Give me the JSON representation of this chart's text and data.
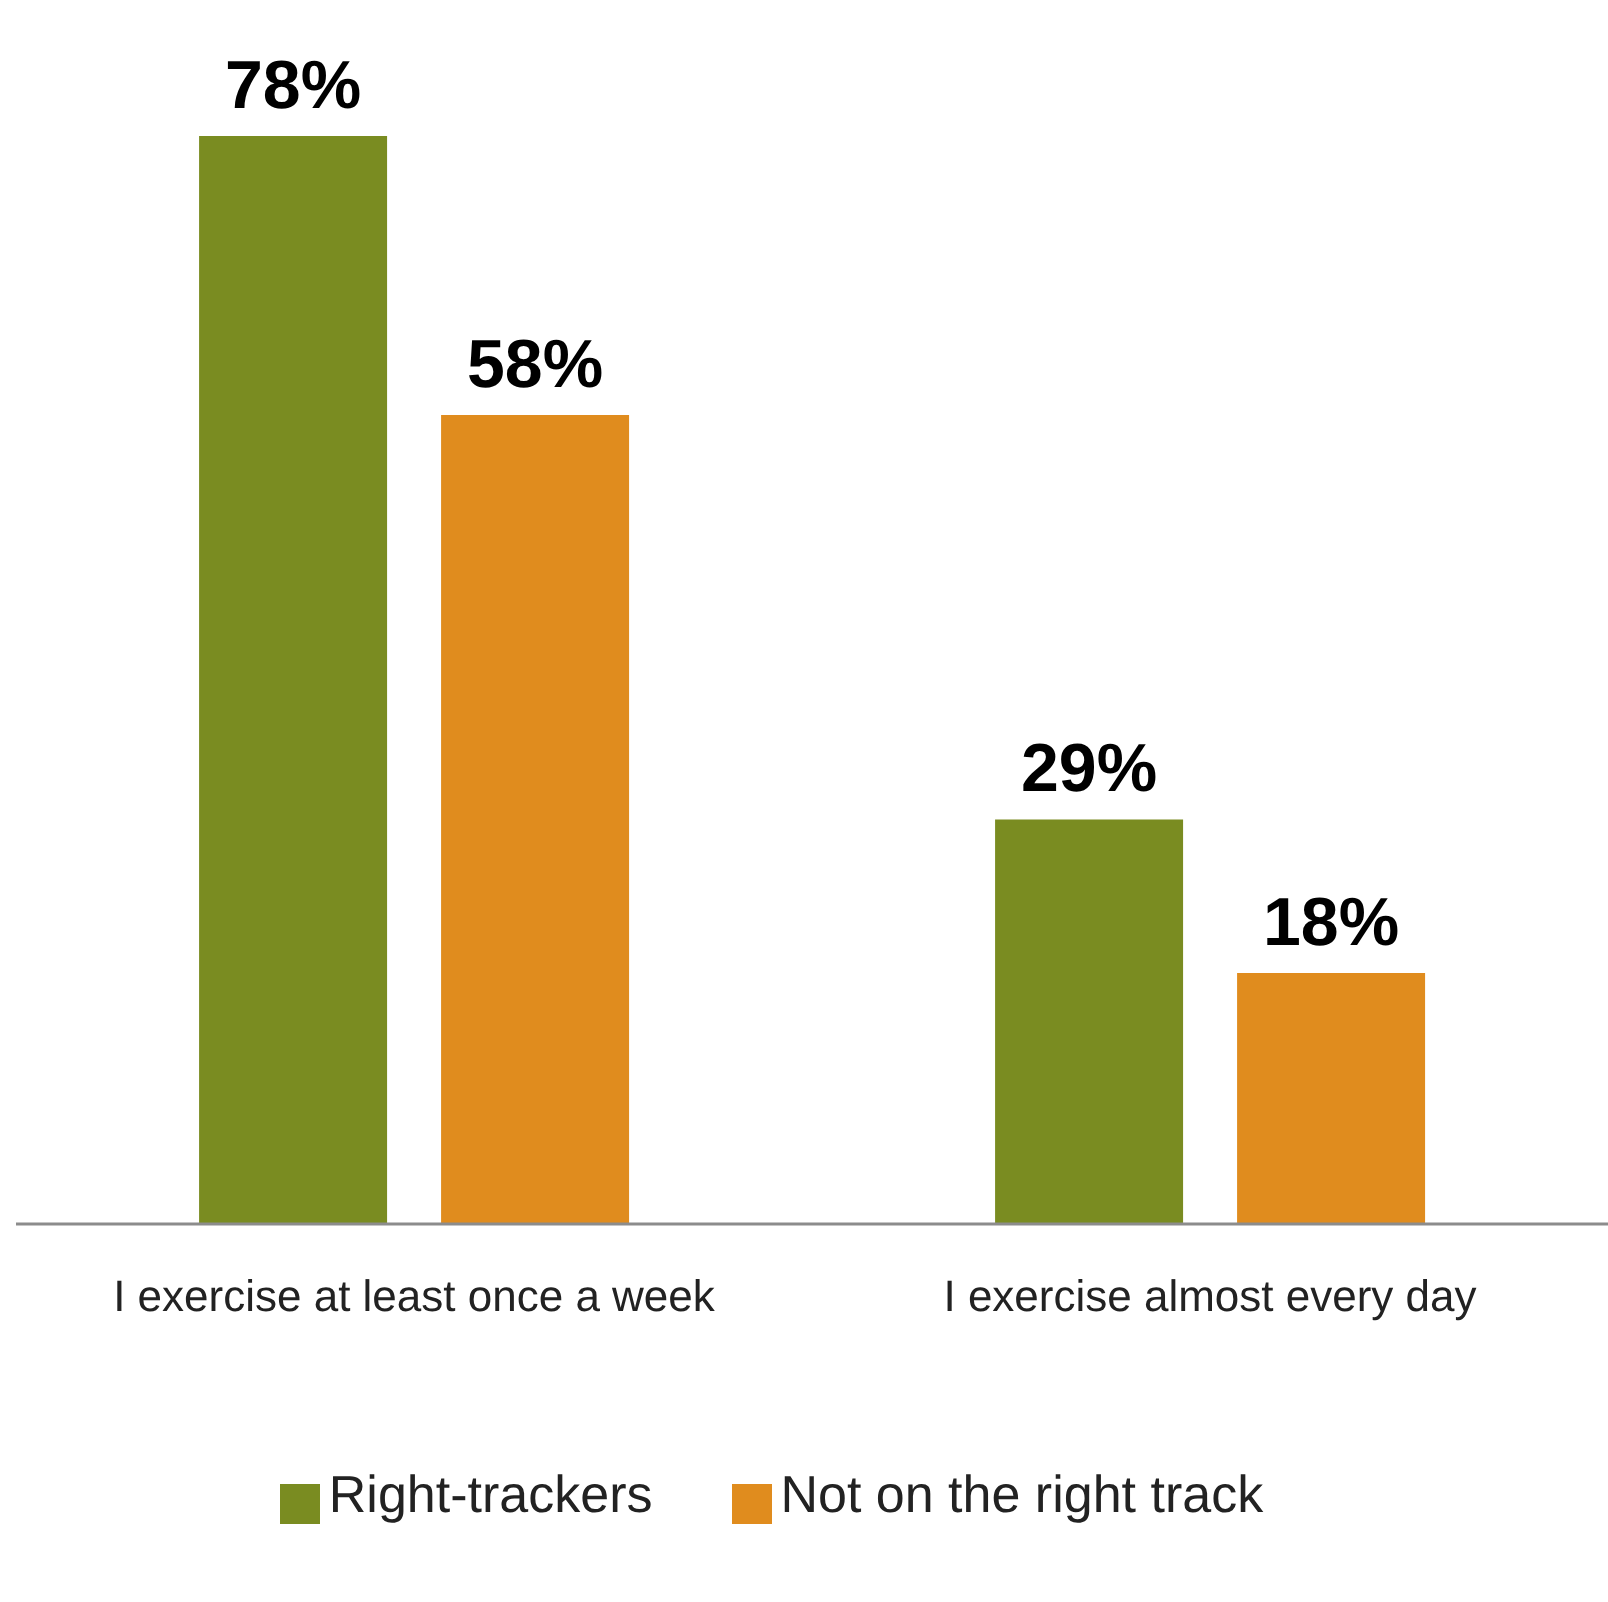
{
  "chart_data": {
    "type": "bar",
    "categories": [
      "I exercise at least once a week",
      "I exercise almost every day"
    ],
    "series": [
      {
        "name": "Right-trackers",
        "color": "#7a8c21",
        "values": [
          78,
          29
        ],
        "value_labels": [
          "78%",
          "29%"
        ]
      },
      {
        "name": "Not on the right track",
        "color": "#e08c1e",
        "values": [
          58,
          18
        ],
        "value_labels": [
          "58%",
          "18%"
        ]
      }
    ],
    "legend": "bottom",
    "grid": false
  }
}
